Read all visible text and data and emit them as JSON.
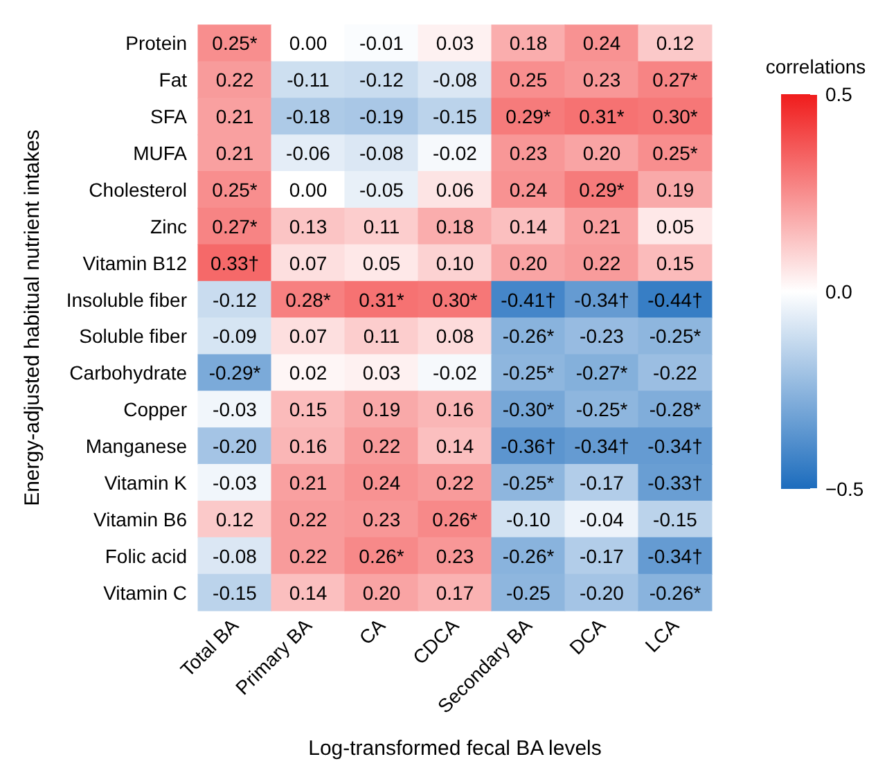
{
  "chart_data": {
    "type": "heatmap",
    "xlabel": "Log-transformed fecal BA levels",
    "ylabel": "Energy-adjusted habitual nutrient intakes",
    "clabel": "correlations",
    "categories": [
      "Total BA",
      "Primary BA",
      "CA",
      "CDCA",
      "Secondary BA",
      "DCA",
      "LCA"
    ],
    "y_categories": [
      "Protein",
      "Fat",
      "SFA",
      "MUFA",
      "Cholesterol",
      "Zinc",
      "Vitamin B12",
      "Insoluble fiber",
      "Soluble fiber",
      "Carbohydrate",
      "Copper",
      "Manganese",
      "Vitamin K",
      "Vitamin B6",
      "Folic acid",
      "Vitamin C"
    ],
    "cells": [
      [
        0.25,
        0.0,
        -0.01,
        0.03,
        0.18,
        0.24,
        0.12
      ],
      [
        0.22,
        -0.11,
        -0.12,
        -0.08,
        0.25,
        0.23,
        0.27
      ],
      [
        0.21,
        -0.18,
        -0.19,
        -0.15,
        0.29,
        0.31,
        0.3
      ],
      [
        0.21,
        -0.06,
        -0.08,
        -0.02,
        0.23,
        0.2,
        0.25
      ],
      [
        0.25,
        0.0,
        -0.05,
        0.06,
        0.24,
        0.29,
        0.19
      ],
      [
        0.27,
        0.13,
        0.11,
        0.18,
        0.14,
        0.21,
        0.05
      ],
      [
        0.33,
        0.07,
        0.05,
        0.1,
        0.2,
        0.22,
        0.15
      ],
      [
        -0.12,
        0.28,
        0.31,
        0.3,
        -0.41,
        -0.34,
        -0.44
      ],
      [
        -0.09,
        0.07,
        0.11,
        0.08,
        -0.26,
        -0.23,
        -0.25
      ],
      [
        -0.29,
        0.02,
        0.03,
        -0.02,
        -0.25,
        -0.27,
        -0.22
      ],
      [
        -0.03,
        0.15,
        0.19,
        0.16,
        -0.3,
        -0.25,
        -0.28
      ],
      [
        -0.2,
        0.16,
        0.22,
        0.14,
        -0.36,
        -0.34,
        -0.34
      ],
      [
        -0.03,
        0.21,
        0.24,
        0.22,
        -0.25,
        -0.17,
        -0.33
      ],
      [
        0.12,
        0.22,
        0.23,
        0.26,
        -0.1,
        -0.04,
        -0.15
      ],
      [
        -0.08,
        0.22,
        0.26,
        0.23,
        -0.26,
        -0.17,
        -0.34
      ],
      [
        -0.15,
        0.14,
        0.2,
        0.17,
        -0.25,
        -0.2,
        -0.26
      ]
    ],
    "cell_labels": [
      [
        "0.25*",
        "0.00",
        "-0.01",
        "0.03",
        "0.18",
        "0.24",
        "0.12"
      ],
      [
        "0.22",
        "-0.11",
        "-0.12",
        "-0.08",
        "0.25",
        "0.23",
        "0.27*"
      ],
      [
        "0.21",
        "-0.18",
        "-0.19",
        "-0.15",
        "0.29*",
        "0.31*",
        "0.30*"
      ],
      [
        "0.21",
        "-0.06",
        "-0.08",
        "-0.02",
        "0.23",
        "0.20",
        "0.25*"
      ],
      [
        "0.25*",
        "0.00",
        "-0.05",
        "0.06",
        "0.24",
        "0.29*",
        "0.19"
      ],
      [
        "0.27*",
        "0.13",
        "0.11",
        "0.18",
        "0.14",
        "0.21",
        "0.05"
      ],
      [
        "0.33†",
        "0.07",
        "0.05",
        "0.10",
        "0.20",
        "0.22",
        "0.15"
      ],
      [
        "-0.12",
        "0.28*",
        "0.31*",
        "0.30*",
        "-0.41†",
        "-0.34†",
        "-0.44†"
      ],
      [
        "-0.09",
        "0.07",
        "0.11",
        "0.08",
        "-0.26*",
        "-0.23",
        "-0.25*"
      ],
      [
        "-0.29*",
        "0.02",
        "0.03",
        "-0.02",
        "-0.25*",
        "-0.27*",
        "-0.22"
      ],
      [
        "-0.03",
        "0.15",
        "0.19",
        "0.16",
        "-0.30*",
        "-0.25*",
        "-0.28*"
      ],
      [
        "-0.20",
        "0.16",
        "0.22",
        "0.14",
        "-0.36†",
        "-0.34†",
        "-0.34†"
      ],
      [
        "-0.03",
        "0.21",
        "0.24",
        "0.22",
        "-0.25*",
        "-0.17",
        "-0.33†"
      ],
      [
        "0.12",
        "0.22",
        "0.23",
        "0.26*",
        "-0.10",
        "-0.04",
        "-0.15"
      ],
      [
        "-0.08",
        "0.22",
        "0.26*",
        "0.23",
        "-0.26*",
        "-0.17",
        "-0.34†"
      ],
      [
        "-0.15",
        "0.14",
        "0.20",
        "0.17",
        "-0.25",
        "-0.20",
        "-0.26*"
      ]
    ],
    "clim": [
      -0.5,
      0.5
    ],
    "cticks": [
      {
        "value": -0.5,
        "label": "−0.5"
      },
      {
        "value": 0,
        "label": "0.0"
      },
      0.5
    ]
  }
}
